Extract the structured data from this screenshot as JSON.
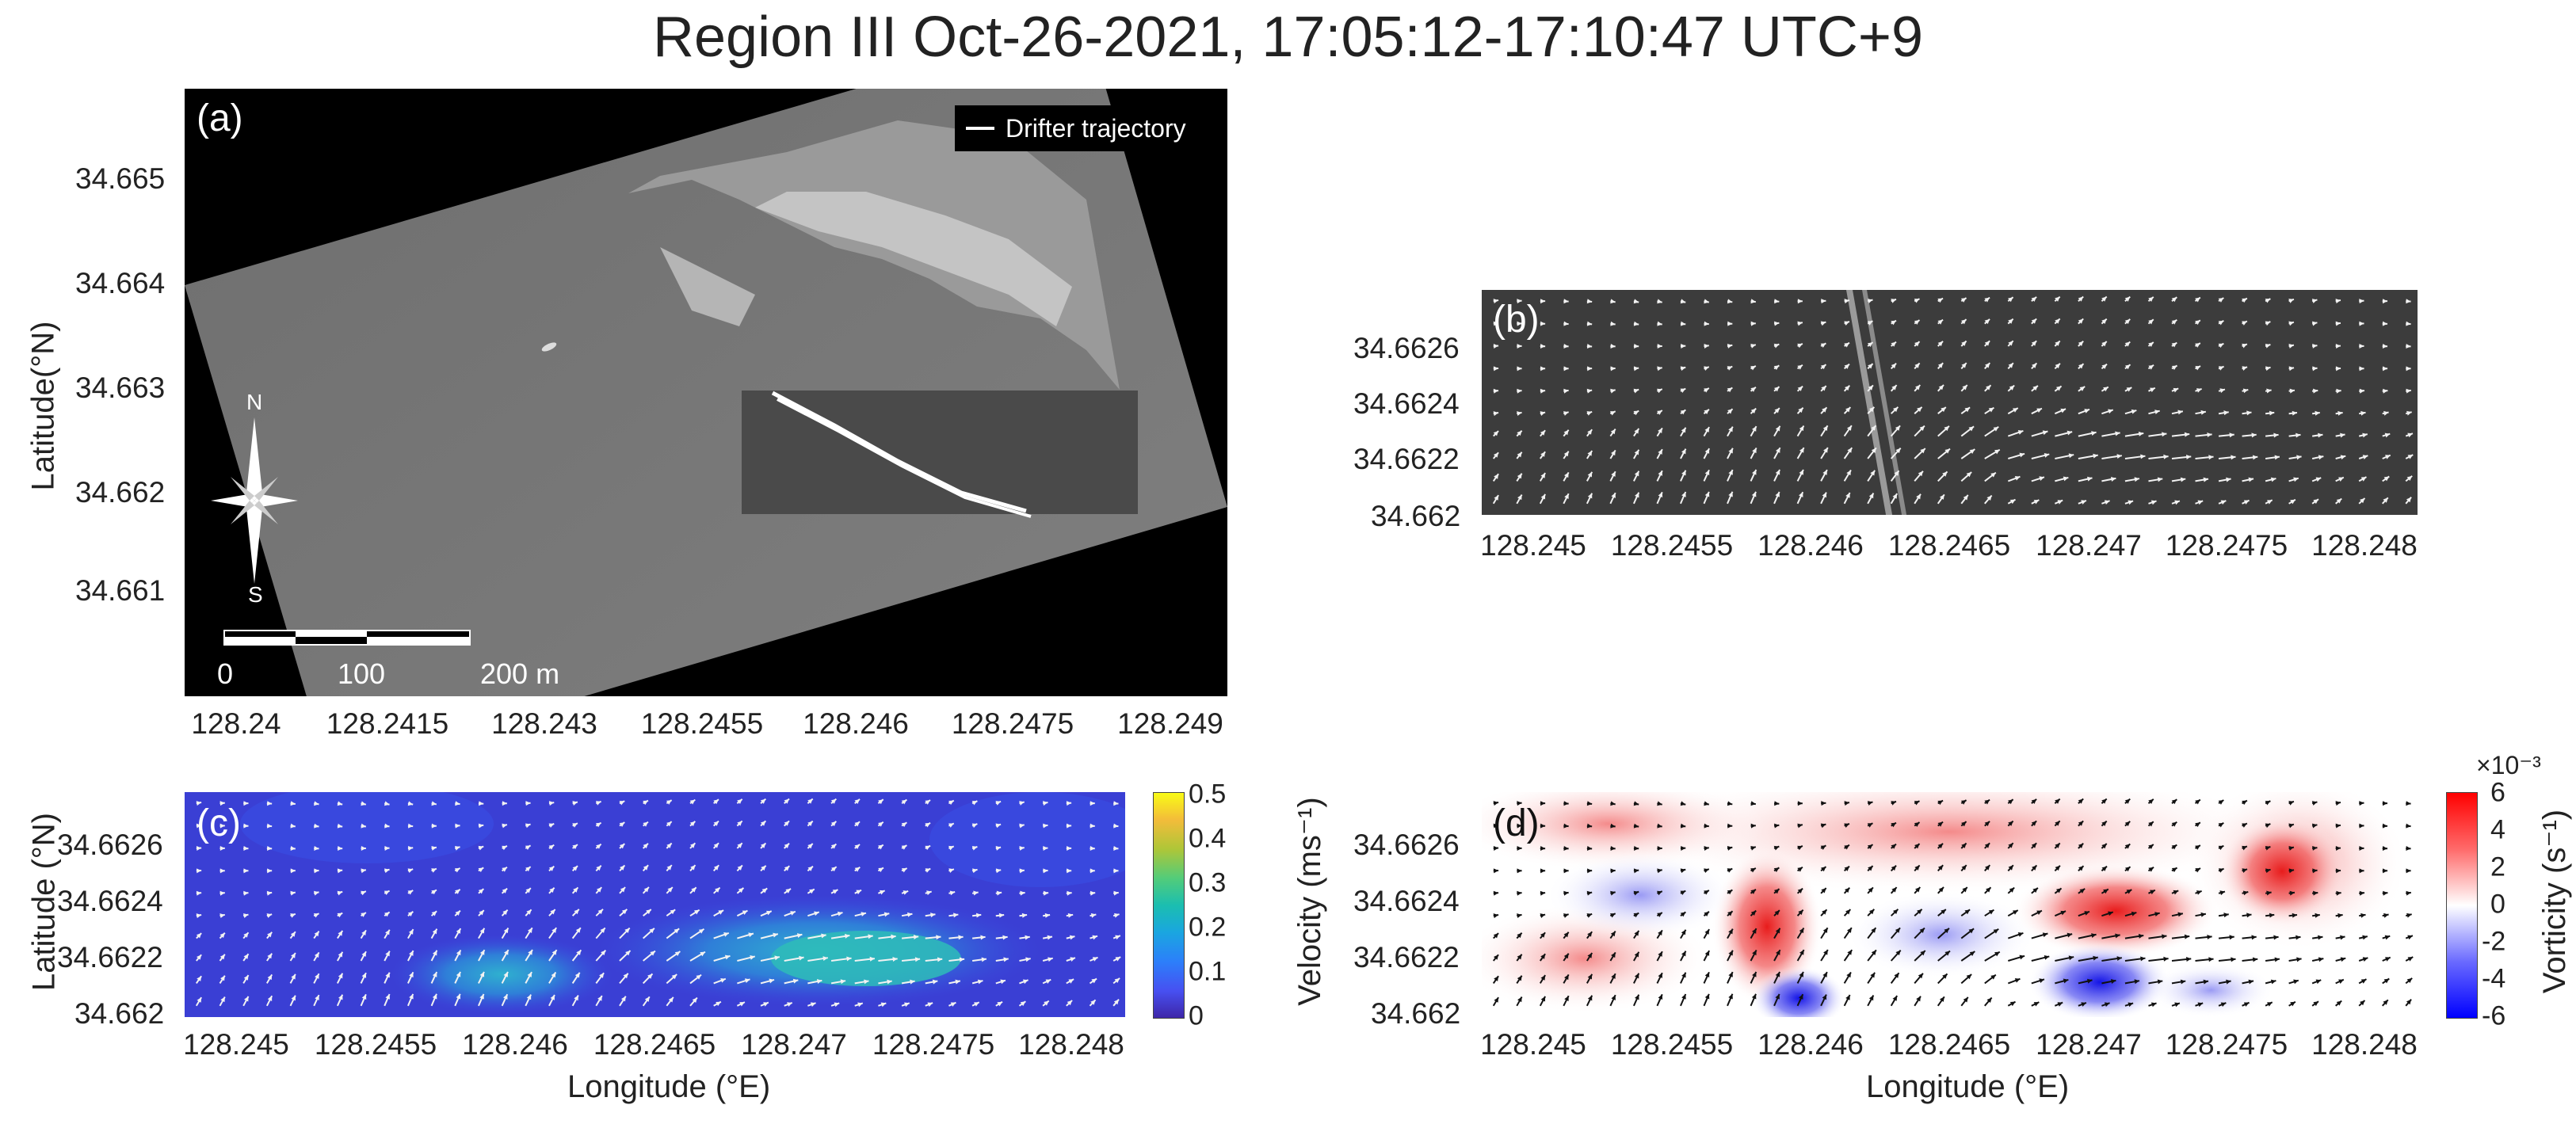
{
  "figure": {
    "title": "Region III Oct-26-2021, 17:05:12-17:10:47 UTC+9"
  },
  "panel_a": {
    "label": "(a)",
    "legend": "Drifter trajectory",
    "compass_n": "N",
    "compass_s": "S",
    "scale_labels": [
      "0",
      "100",
      "200 m"
    ],
    "ylabel": "Latitude(°N)",
    "xticks": [
      "128.24",
      "128.2415",
      "128.243",
      "128.2455",
      "128.246",
      "128.2475",
      "128.249"
    ],
    "yticks": [
      "34.665",
      "34.664",
      "34.663",
      "34.662",
      "34.661"
    ]
  },
  "panel_b": {
    "label": "(b)",
    "xticks": [
      "128.245",
      "128.2455",
      "128.246",
      "128.2465",
      "128.247",
      "128.2475",
      "128.248"
    ],
    "yticks": [
      "34.6626",
      "34.6624",
      "34.6622",
      "34.662"
    ]
  },
  "panel_c": {
    "label": "(c)",
    "xlabel": "Longitude (°E)",
    "ylabel": "Latitude (°N)",
    "xticks": [
      "128.245",
      "128.2455",
      "128.246",
      "128.2465",
      "128.247",
      "128.2475",
      "128.248"
    ],
    "yticks": [
      "34.6626",
      "34.6624",
      "34.6622",
      "34.662"
    ],
    "colorbar_label": "Velocity (ms⁻¹)",
    "colorbar_ticks": [
      "0.5",
      "0.4",
      "0.3",
      "0.2",
      "0.1",
      "0"
    ]
  },
  "panel_d": {
    "label": "(d)",
    "xlabel": "Longitude (°E)",
    "xticks": [
      "128.245",
      "128.2455",
      "128.246",
      "128.2465",
      "128.247",
      "128.2475",
      "128.248"
    ],
    "yticks": [
      "34.6626",
      "34.6624",
      "34.6622",
      "34.662"
    ],
    "colorbar_label": "Vorticity (s⁻¹)",
    "colorbar_exponent": "×10⁻³",
    "colorbar_ticks": [
      "6",
      "4",
      "2",
      "0",
      "-2",
      "-4",
      "-6"
    ]
  },
  "chart_data": [
    {
      "type": "image",
      "panel": "(a)",
      "title": "",
      "ylabel": "Latitude(°N)",
      "xlim": [
        128.239,
        128.2495
      ],
      "ylim": [
        34.66,
        34.6658
      ],
      "series": [
        {
          "name": "Drifter trajectory",
          "x": [
            128.2458,
            128.2476
          ],
          "y": [
            34.6628,
            34.6617
          ]
        }
      ],
      "scale_bar_m": 200
    },
    {
      "type": "heatmap",
      "panel": "(c)",
      "quantity": "Velocity",
      "units": "ms⁻¹",
      "xlim": [
        128.2446,
        128.2481
      ],
      "ylim": [
        34.66198,
        34.66278
      ],
      "clim": [
        0,
        0.5
      ],
      "colormap": "parula",
      "max_region": {
        "x": [
          128.2469,
          128.2476
        ],
        "y": [
          34.6621,
          34.6623
        ],
        "value": 0.2
      },
      "background_value": 0.05
    },
    {
      "type": "heatmap",
      "panel": "(d)",
      "quantity": "Vorticity",
      "units": "s⁻¹",
      "scale": 0.001,
      "xlim": [
        128.2446,
        128.2481
      ],
      "ylim": [
        34.66198,
        34.66278
      ],
      "clim": [
        -6,
        6
      ],
      "colormap": "blue-white-red",
      "extrema": [
        {
          "x": 128.2459,
          "y": 34.6623,
          "value": 5
        },
        {
          "x": 128.2471,
          "y": 34.6624,
          "value": 4
        },
        {
          "x": 128.2478,
          "y": 34.6625,
          "value": 4
        },
        {
          "x": 128.2459,
          "y": 34.662,
          "value": -5
        },
        {
          "x": 128.2471,
          "y": 34.6621,
          "value": -5
        },
        {
          "x": 128.2465,
          "y": 34.6623,
          "value": -2
        }
      ]
    }
  ]
}
